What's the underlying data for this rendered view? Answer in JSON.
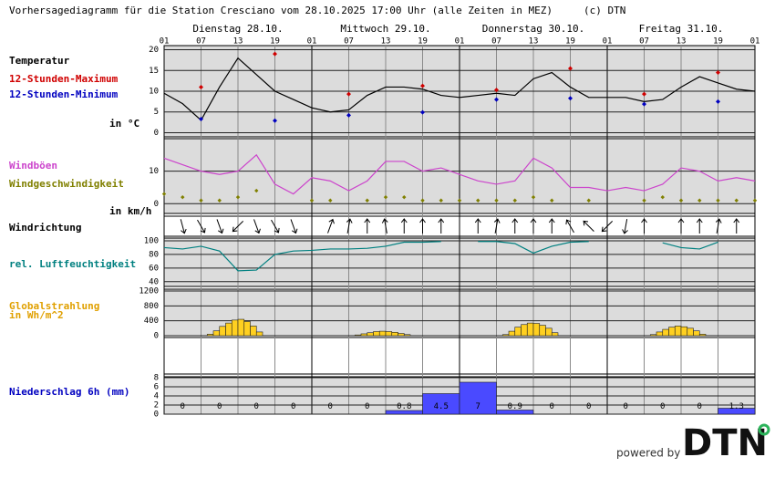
{
  "header": {
    "title": "Vorhersagediagramm für die Station Cresciano vom 28.10.2025 17:00 Uhr (alle Zeiten in MEZ)",
    "copyright": "(c) DTN"
  },
  "x_axis": {
    "days": [
      "Dienstag 28.10.",
      "Mittwoch 29.10.",
      "Donnerstag 30.10.",
      "Freitag 31.10."
    ],
    "hours": [
      "01",
      "07",
      "13",
      "19",
      "01",
      "07",
      "13",
      "19",
      "01",
      "07",
      "13",
      "19",
      "01",
      "07",
      "13",
      "19",
      "01"
    ]
  },
  "chart_data": [
    {
      "type": "line",
      "unit": "in °C",
      "ylim": [
        -1,
        21
      ],
      "yticks": [
        0,
        5,
        10,
        15,
        20
      ],
      "series": [
        {
          "name": "Temperatur",
          "color": "#000000",
          "style": "line",
          "values": [
            9.5,
            7,
            3,
            11,
            18,
            14,
            10,
            8,
            6,
            5,
            5.5,
            9,
            11,
            11,
            10.5,
            9,
            8.5,
            9,
            9.5,
            9,
            13,
            14.5,
            11,
            8.5,
            8.5,
            8.5,
            7.5,
            8,
            11,
            13.5,
            12,
            10.5,
            10
          ]
        },
        {
          "name": "12-Stunden-Maximum",
          "color": "#d00000",
          "style": "extreme",
          "values": [
            11,
            19,
            9.3,
            11.3,
            10.3,
            15.5,
            9.3,
            14.5
          ]
        },
        {
          "name": "12-Stunden-Minimum",
          "color": "#0000c0",
          "style": "extreme",
          "values": [
            3.3,
            2.9,
            4.2,
            4.9,
            8,
            8.3,
            6.9,
            7.5
          ]
        }
      ]
    },
    {
      "type": "line",
      "unit": "in km/h",
      "ylim": [
        -3,
        20
      ],
      "yticks": [
        0,
        10
      ],
      "series": [
        {
          "name": "Windböen",
          "color": "#cc44cc",
          "style": "line",
          "values": [
            14,
            12,
            10,
            9,
            10,
            15,
            6,
            3,
            8,
            7,
            4,
            7,
            13,
            13,
            10,
            11,
            9,
            7,
            6,
            7,
            14,
            11,
            5,
            5,
            4,
            5,
            4,
            6,
            11,
            10,
            7,
            8,
            7
          ]
        },
        {
          "name": "Windgeschwindigkeit",
          "color": "#808000",
          "style": "dots",
          "values": [
            3,
            2,
            1,
            1,
            2,
            4,
            null,
            null,
            1,
            1,
            null,
            1,
            2,
            2,
            1,
            1,
            1,
            1,
            1,
            1,
            2,
            1,
            null,
            1,
            null,
            null,
            1,
            2,
            1,
            1,
            1,
            1,
            1
          ]
        }
      ]
    },
    {
      "type": "arrows",
      "title": "Windrichtung",
      "color": "#000000",
      "values": [
        null,
        345,
        330,
        340,
        45,
        340,
        330,
        340,
        null,
        200,
        190,
        180,
        170,
        180,
        180,
        180,
        null,
        180,
        190,
        180,
        180,
        180,
        150,
        135,
        45,
        10,
        180,
        null,
        180,
        180,
        190,
        180,
        null
      ]
    },
    {
      "type": "line",
      "ylim": [
        33,
        104
      ],
      "yticks": [
        40,
        60,
        80,
        100
      ],
      "series": [
        {
          "name": "rel. Luftfeuchtigkeit",
          "color": "#008080",
          "style": "line",
          "values": [
            90,
            88,
            92,
            85,
            56,
            57,
            80,
            85,
            86,
            88,
            88,
            89,
            92,
            98,
            98,
            99,
            null,
            99,
            99,
            96,
            82,
            92,
            98,
            99,
            null,
            null,
            null,
            97,
            90,
            88,
            98,
            null,
            null
          ]
        }
      ]
    },
    {
      "type": "bar",
      "title": "Globalstrahlung",
      "unit": "in Wh/m^2",
      "color": "#ffd020",
      "label_color": "#e0a000",
      "ylim": [
        0,
        1250
      ],
      "yticks": [
        0,
        400,
        800,
        1200
      ],
      "values": [
        0,
        0,
        0,
        0,
        0,
        0,
        0,
        40,
        130,
        250,
        340,
        420,
        440,
        380,
        260,
        100,
        0,
        0,
        0,
        0,
        0,
        0,
        0,
        0,
        0,
        0,
        0,
        0,
        0,
        0,
        0,
        20,
        50,
        80,
        110,
        120,
        110,
        90,
        60,
        30,
        0,
        0,
        0,
        0,
        0,
        0,
        0,
        0,
        0,
        0,
        0,
        0,
        0,
        0,
        0,
        30,
        120,
        230,
        300,
        340,
        330,
        280,
        200,
        80,
        0,
        0,
        0,
        0,
        0,
        0,
        0,
        0,
        0,
        0,
        0,
        0,
        0,
        0,
        0,
        30,
        100,
        170,
        230,
        260,
        240,
        200,
        130,
        40,
        0,
        0,
        0,
        0,
        0,
        0,
        0,
        0
      ]
    },
    {
      "type": "bar",
      "title": "Niederschlag 6h (mm)",
      "color": "#4a4aff",
      "label_color": "#0000c0",
      "show_values": true,
      "ylim": [
        0,
        8.2
      ],
      "yticks": [
        0,
        2,
        4,
        6,
        8
      ],
      "values": [
        0,
        0,
        0,
        0,
        0,
        0,
        0.8,
        4.5,
        7,
        0.9,
        0,
        0,
        0,
        0,
        0,
        1.3
      ]
    }
  ],
  "footer": {
    "powered": "powered by",
    "logo": "DTN"
  }
}
